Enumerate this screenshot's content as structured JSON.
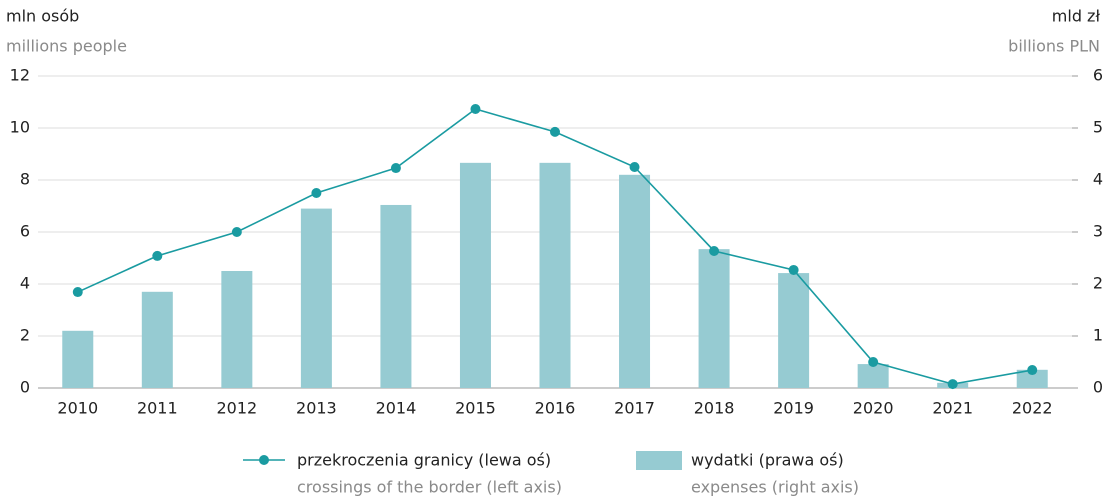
{
  "chart_data": {
    "type": "bar-line",
    "y_label": "mln osób",
    "y_label_en": "millions people",
    "y2_label": "mld zł",
    "y2_label_en": "billions PLN",
    "categories": [
      "2010",
      "2011",
      "2012",
      "2013",
      "2014",
      "2015",
      "2016",
      "2017",
      "2018",
      "2019",
      "2020",
      "2021",
      "2022"
    ],
    "series": [
      {
        "name": "przekroczenia granicy (lewa oś)",
        "name_en": "crossings of the border (left axis)",
        "type": "line",
        "color": "#1a9ba1",
        "axis": "y",
        "values": [
          3.69,
          5.08,
          6.0,
          7.5,
          8.46,
          10.73,
          9.85,
          8.5,
          5.27,
          4.54,
          1.0,
          0.15,
          0.69
        ]
      },
      {
        "name": "wydatki (prawa oś)",
        "name_en": "expenses (right axis)",
        "type": "bar",
        "color": "#96cbd2",
        "axis": "y2",
        "values": [
          1.1,
          1.85,
          2.25,
          3.45,
          3.52,
          4.33,
          4.33,
          4.1,
          2.67,
          2.21,
          0.46,
          0.1,
          0.35
        ]
      }
    ],
    "ylim": [
      0,
      12
    ],
    "yticks": [
      0,
      2,
      4,
      6,
      8,
      10,
      12
    ],
    "y2lim": [
      0,
      6
    ],
    "y2ticks": [
      0,
      1,
      2,
      3,
      4,
      5,
      6
    ],
    "grid": true
  }
}
